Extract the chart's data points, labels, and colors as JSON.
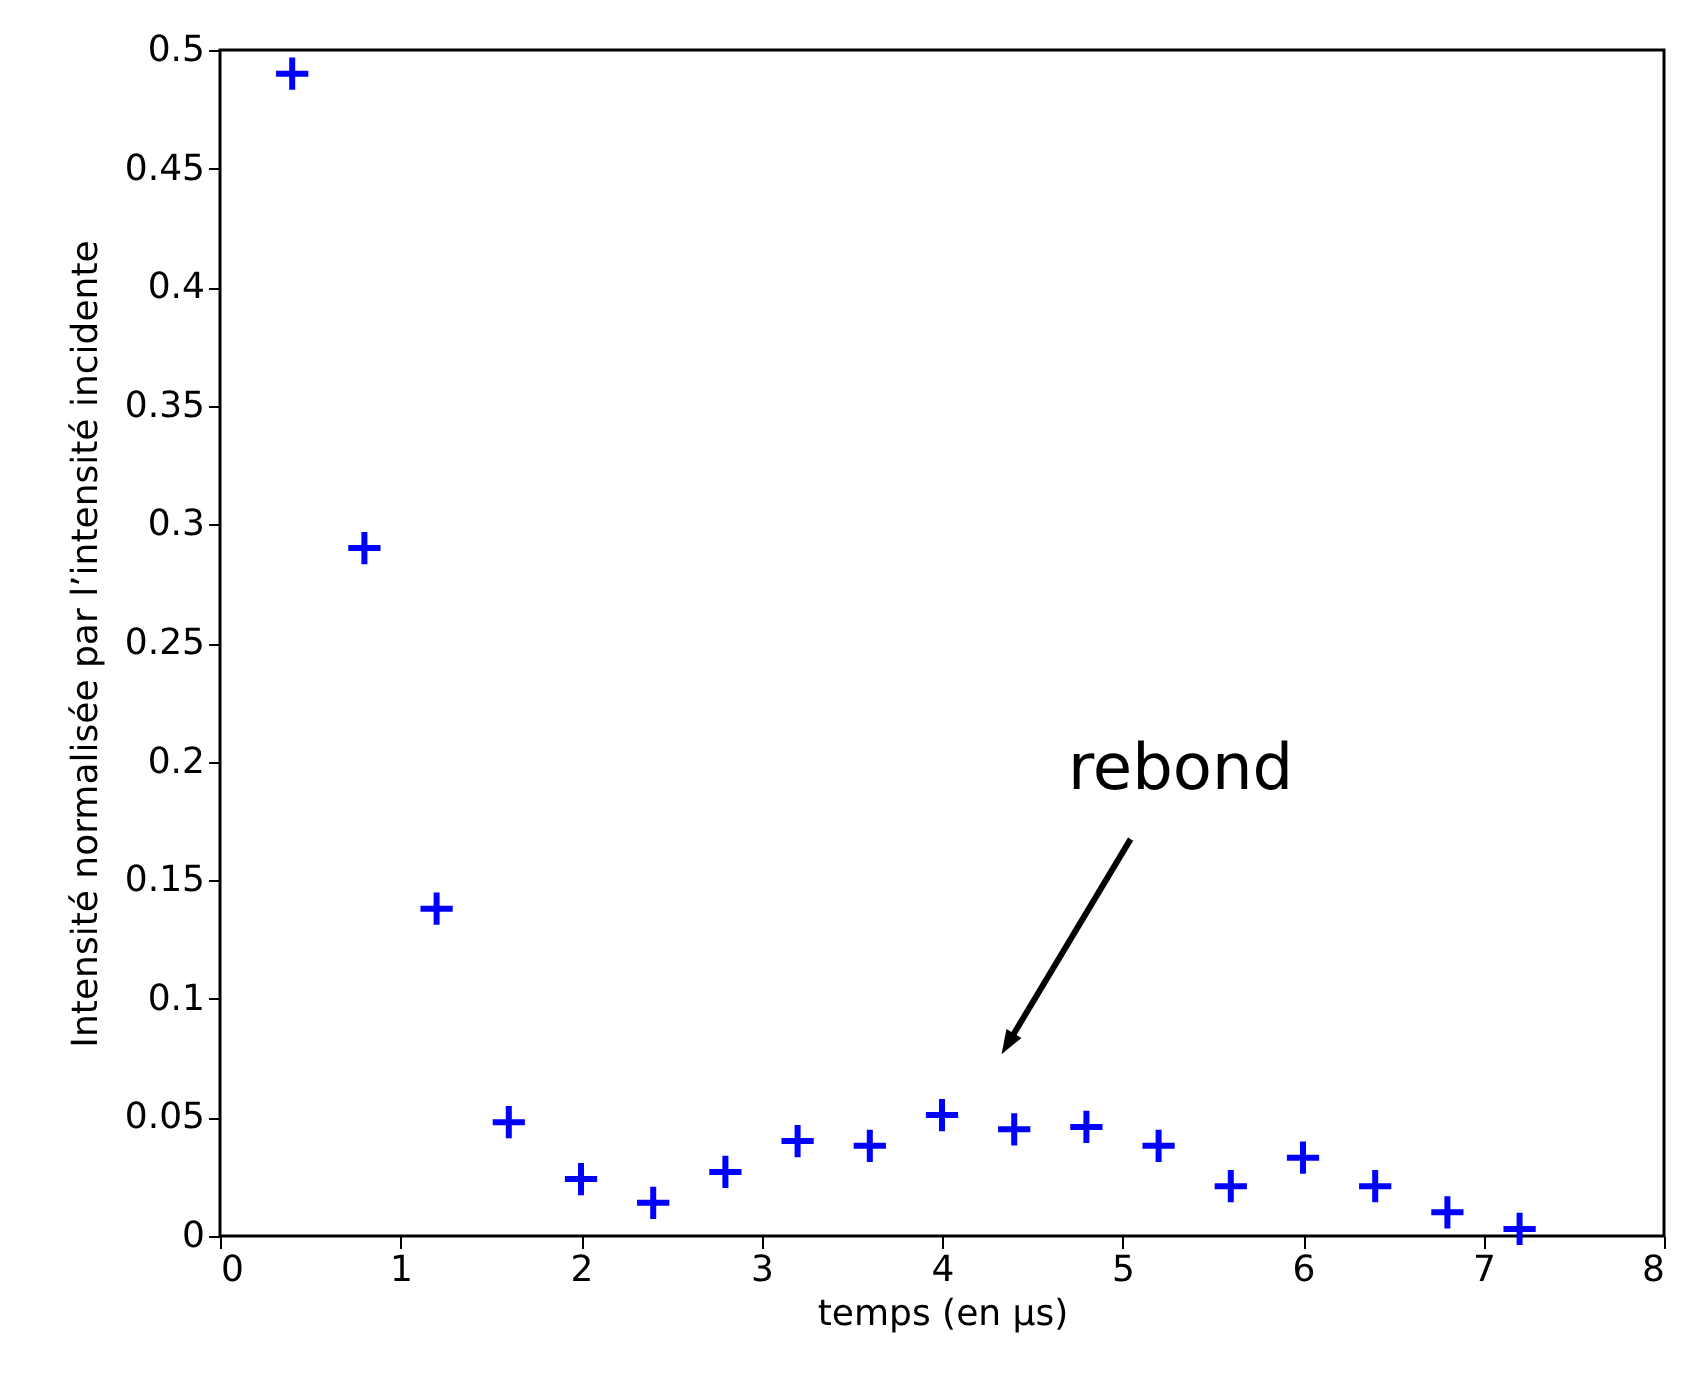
{
  "chart_data": {
    "type": "scatter",
    "xlabel": "temps (en µs)",
    "ylabel": "Intensité normalisée par l’intensité incidente",
    "x": [
      0.4,
      0.8,
      1.2,
      1.6,
      2.0,
      2.4,
      2.8,
      3.2,
      3.6,
      4.0,
      4.4,
      4.8,
      5.2,
      5.6,
      6.0,
      6.4,
      6.8,
      7.2
    ],
    "series": [
      {
        "color": "#0000ff",
        "values": [
          0.49,
          0.29,
          0.138,
          0.048,
          0.024,
          0.014,
          0.027,
          0.04,
          0.038,
          0.051,
          0.045,
          0.046,
          0.038,
          0.021,
          0.033,
          0.021,
          0.01,
          0.003
        ]
      }
    ],
    "xlim": [
      0,
      8
    ],
    "ylim": [
      0,
      0.5
    ],
    "xticks": [
      0,
      1,
      2,
      3,
      4,
      5,
      6,
      7,
      8
    ],
    "yticks": [
      0,
      0.05,
      0.1,
      0.15,
      0.2,
      0.25,
      0.3,
      0.35,
      0.4,
      0.45,
      0.5
    ],
    "marker": "cross",
    "grid": false,
    "annotations": [
      {
        "text": "rebond",
        "x": 4.38,
        "y": 0.083
      }
    ]
  }
}
